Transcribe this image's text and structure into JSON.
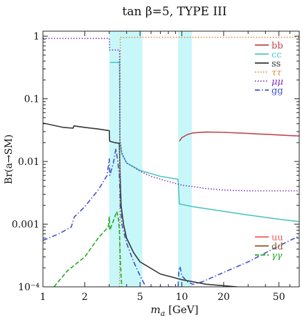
{
  "chart_data": {
    "type": "line",
    "title": "tan β=5, TYPE III",
    "xlabel": "m_a [GeV]",
    "ylabel": "Br(a→SM)",
    "xscale": "log",
    "yscale": "log",
    "xlim": [
      1,
      70
    ],
    "ylim": [
      0.0001,
      1.2
    ],
    "grid": false,
    "legend_placement": [
      "top-right",
      "bottom-right"
    ],
    "x_ticks": [
      {
        "value": 1,
        "label": "1"
      },
      {
        "value": 2,
        "label": "2"
      },
      {
        "value": 5,
        "label": "5"
      },
      {
        "value": 10,
        "label": "10"
      },
      {
        "value": 20,
        "label": "20"
      },
      {
        "value": 50,
        "label": "50"
      }
    ],
    "y_ticks": [
      {
        "value": 0.0001,
        "label": "10⁻⁴"
      },
      {
        "value": 0.001,
        "label": "0.001"
      },
      {
        "value": 0.01,
        "label": "0.01"
      },
      {
        "value": 0.1,
        "label": "0.1"
      },
      {
        "value": 1,
        "label": "1"
      }
    ],
    "bands": [
      {
        "x": [
          3.0,
          5.2
        ],
        "color": "#c8f7f9"
      },
      {
        "x": [
          9.4,
          11.8
        ],
        "color": "#c8f7f9"
      }
    ],
    "series": [
      {
        "name": "bb",
        "color": "#c0444a",
        "dash": "solid",
        "points": [
          [
            9.6,
            0.021
          ],
          [
            10,
            0.024
          ],
          [
            11,
            0.027
          ],
          [
            12,
            0.0285
          ],
          [
            13,
            0.029
          ],
          [
            15,
            0.0295
          ],
          [
            20,
            0.0292
          ],
          [
            30,
            0.028
          ],
          [
            50,
            0.0265
          ],
          [
            70,
            0.0255
          ]
        ]
      },
      {
        "name": "cc",
        "color": "#4cc6c2",
        "dash": "solid",
        "points": [
          [
            3.05,
            0.38
          ],
          [
            3.5,
            0.38
          ],
          [
            3.56,
            0.4
          ],
          [
            3.58,
            0.02
          ],
          [
            3.7,
            0.013
          ],
          [
            4,
            0.0095
          ],
          [
            5,
            0.0072
          ],
          [
            7,
            0.0058
          ],
          [
            9.4,
            0.0052
          ],
          [
            9.6,
            0.0021
          ],
          [
            12,
            0.0019
          ],
          [
            20,
            0.0016
          ],
          [
            30,
            0.0014
          ],
          [
            50,
            0.0012
          ],
          [
            70,
            0.0011
          ]
        ]
      },
      {
        "name": "ss",
        "color": "#333333",
        "dash": "solid",
        "points": [
          [
            1,
            0.041
          ],
          [
            1.4,
            0.035
          ],
          [
            1.65,
            0.034
          ],
          [
            1.67,
            0.037
          ],
          [
            2,
            0.035
          ],
          [
            2.5,
            0.033
          ],
          [
            3,
            0.031
          ],
          [
            3.02,
            0.021
          ],
          [
            3.3,
            0.02
          ],
          [
            3.55,
            0.0195
          ],
          [
            3.6,
            0.005
          ],
          [
            3.65,
            0.002
          ],
          [
            3.8,
            0.001
          ],
          [
            4,
            0.0006
          ],
          [
            4.5,
            0.00035
          ],
          [
            5,
            0.00025
          ],
          [
            7,
            0.00016
          ],
          [
            10,
            0.00013
          ],
          [
            15,
            0.00011
          ],
          [
            25,
            0.0001
          ]
        ]
      },
      {
        "name": "ττ",
        "color": "#e08a3c",
        "dash": "dot",
        "points": [
          [
            3.56,
            0.0001
          ],
          [
            3.6,
            0.95
          ],
          [
            5,
            0.96
          ],
          [
            10,
            0.96
          ],
          [
            30,
            0.96
          ],
          [
            70,
            0.96
          ]
        ]
      },
      {
        "name": "μμ",
        "color": "#7b2fbf",
        "dash": "dot",
        "points": [
          [
            1,
            0.92
          ],
          [
            2,
            0.92
          ],
          [
            3,
            0.92
          ],
          [
            3.02,
            0.6
          ],
          [
            3.5,
            0.6
          ],
          [
            3.56,
            0.6
          ],
          [
            3.58,
            0.022
          ],
          [
            3.7,
            0.014
          ],
          [
            4,
            0.0095
          ],
          [
            5,
            0.007
          ],
          [
            6,
            0.0058
          ],
          [
            8,
            0.0048
          ],
          [
            10,
            0.0042
          ],
          [
            15,
            0.0037
          ],
          [
            20,
            0.0035
          ],
          [
            30,
            0.0034
          ],
          [
            50,
            0.0034
          ],
          [
            70,
            0.0034
          ]
        ]
      },
      {
        "name": "gg",
        "color": "#3f4fc8",
        "dash": "dashdot",
        "points": [
          [
            1,
            0.00055
          ],
          [
            1.3,
            0.0007
          ],
          [
            1.6,
            0.0009
          ],
          [
            1.68,
            0.0013
          ],
          [
            2,
            0.0019
          ],
          [
            2.5,
            0.0035
          ],
          [
            2.9,
            0.006
          ],
          [
            3.0,
            0.011
          ],
          [
            3.03,
            0.006
          ],
          [
            3.2,
            0.009
          ],
          [
            3.35,
            0.016
          ],
          [
            3.45,
            0.0105
          ],
          [
            3.55,
            0.006
          ],
          [
            3.6,
            0.002
          ],
          [
            3.7,
            0.001
          ],
          [
            4,
            0.0005
          ],
          [
            4.5,
            0.00025
          ],
          [
            5,
            0.00015
          ],
          [
            5.5,
            0.0001
          ],
          [
            9.4,
            0.0001
          ],
          [
            9.5,
            0.00018
          ],
          [
            9.7,
            0.00021
          ],
          [
            10,
            0.00015
          ],
          [
            11,
            0.00012
          ],
          [
            12,
            0.00011
          ],
          [
            14,
            0.00012
          ],
          [
            20,
            0.00017
          ],
          [
            30,
            0.00025
          ],
          [
            50,
            0.00045
          ],
          [
            70,
            0.00065
          ]
        ]
      },
      {
        "name": "uu",
        "color": "#f05a5a",
        "dash": "solid",
        "points": []
      },
      {
        "name": "dd",
        "color": "#8b5a2b",
        "dash": "solid",
        "points": []
      },
      {
        "name": "γγ",
        "color": "#22aa22",
        "dash": "dashed",
        "points": [
          [
            1.2,
            0.0001
          ],
          [
            1.5,
            0.00018
          ],
          [
            2,
            0.0003
          ],
          [
            2.5,
            0.0006
          ],
          [
            2.95,
            0.0009
          ],
          [
            3.0,
            0.0013
          ],
          [
            3.03,
            0.0008
          ],
          [
            3.2,
            0.0011
          ],
          [
            3.4,
            0.0016
          ],
          [
            3.5,
            0.0012
          ],
          [
            3.55,
            0.0008
          ],
          [
            3.6,
            0.0003
          ],
          [
            3.65,
            0.00015
          ],
          [
            3.7,
            0.0001
          ]
        ]
      }
    ],
    "legends": [
      {
        "position": "top-right",
        "entries": [
          "bb",
          "cc",
          "ss",
          "ττ",
          "μμ",
          "gg"
        ]
      },
      {
        "position": "bottom-right",
        "entries": [
          "uu",
          "dd",
          "γγ"
        ]
      }
    ]
  }
}
